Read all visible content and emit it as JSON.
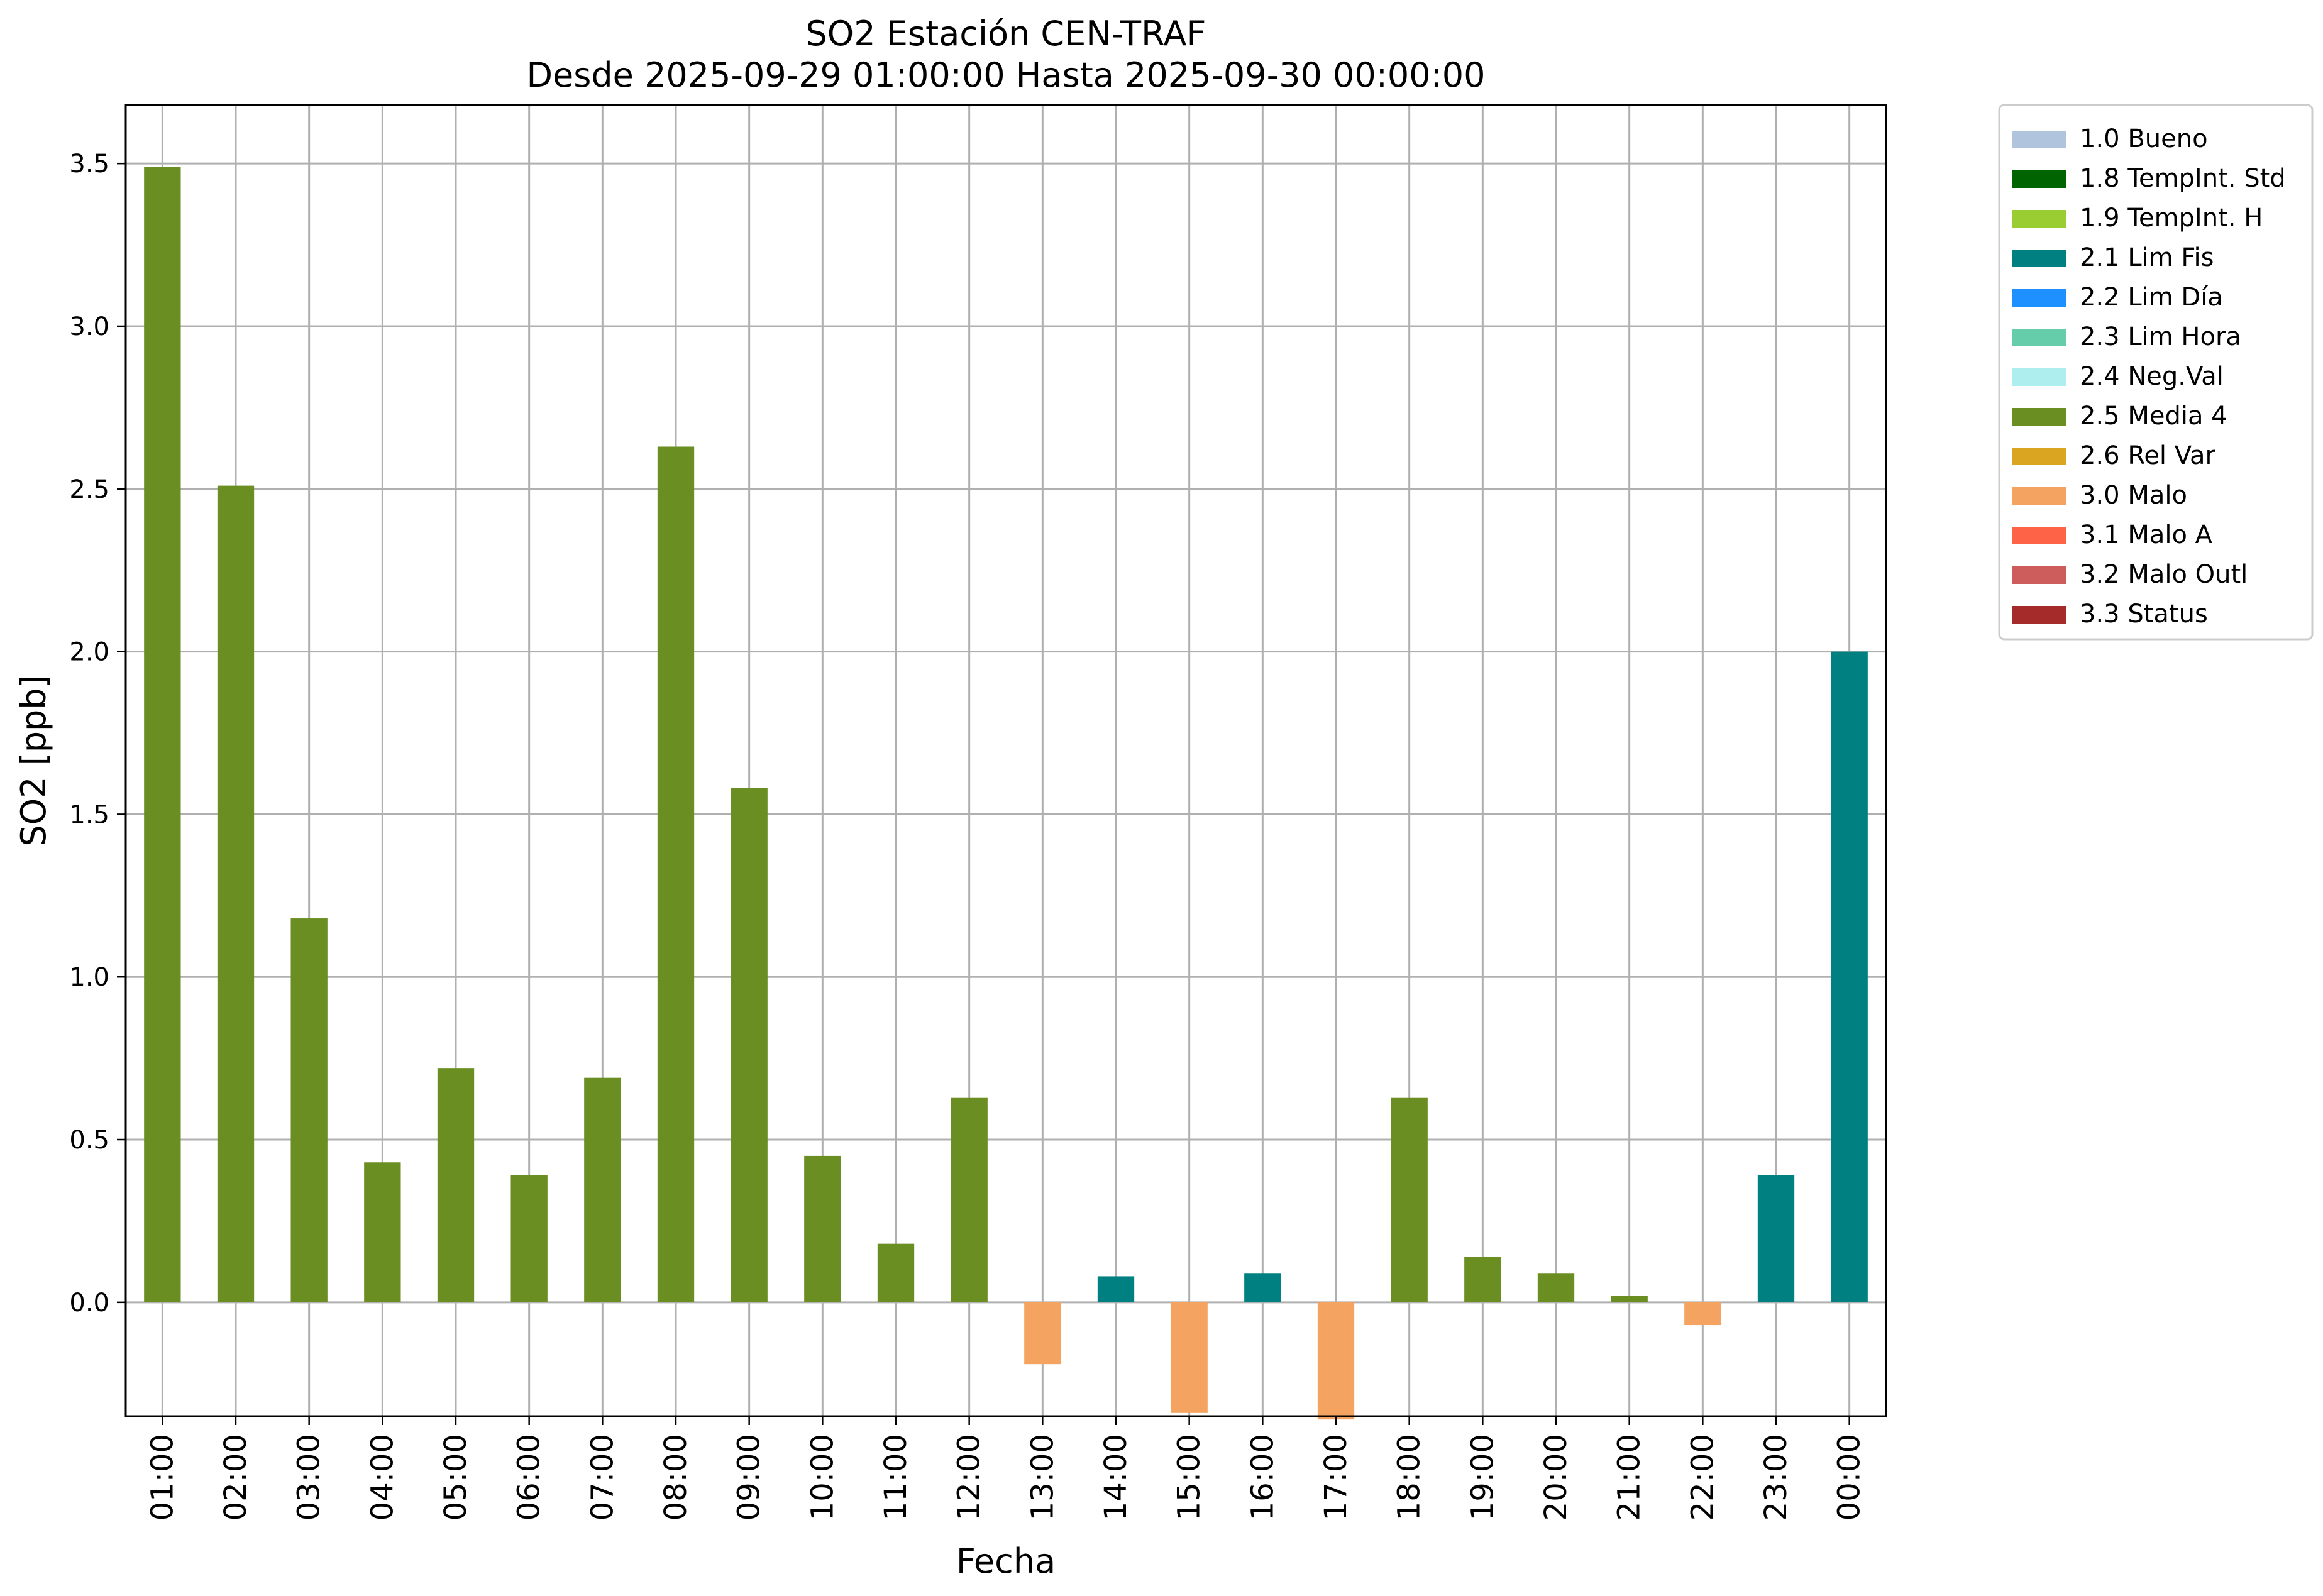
{
  "chart_data": {
    "type": "bar",
    "title": "SO2 Estación CEN-TRAF",
    "subtitle": "Desde 2025-09-29 01:00:00 Hasta 2025-09-30 00:00:00",
    "xlabel": "Fecha",
    "ylabel": "SO2 [ppb]",
    "ylim": [
      -0.35,
      3.68
    ],
    "yticks": [
      "0.0",
      "0.5",
      "1.0",
      "1.5",
      "2.0",
      "2.5",
      "3.0",
      "3.5"
    ],
    "ytick_values": [
      0.0,
      0.5,
      1.0,
      1.5,
      2.0,
      2.5,
      3.0,
      3.5
    ],
    "grid": true,
    "legend_position": "outside-top-right",
    "categories": [
      "01:00",
      "02:00",
      "03:00",
      "04:00",
      "05:00",
      "06:00",
      "07:00",
      "08:00",
      "09:00",
      "10:00",
      "11:00",
      "12:00",
      "13:00",
      "14:00",
      "15:00",
      "16:00",
      "17:00",
      "18:00",
      "19:00",
      "20:00",
      "21:00",
      "22:00",
      "23:00",
      "00:00"
    ],
    "values": [
      3.49,
      2.51,
      1.18,
      0.43,
      0.72,
      0.39,
      0.69,
      2.63,
      1.58,
      0.45,
      0.18,
      0.63,
      -0.19,
      0.08,
      -0.34,
      0.09,
      -0.36,
      0.63,
      0.14,
      0.09,
      0.02,
      -0.07,
      0.39,
      2.0
    ],
    "flags": [
      "2.5 Media 4",
      "2.5 Media 4",
      "2.5 Media 4",
      "2.5 Media 4",
      "2.5 Media 4",
      "2.5 Media 4",
      "2.5 Media 4",
      "2.5 Media 4",
      "2.5 Media 4",
      "2.5 Media 4",
      "2.5 Media 4",
      "2.5 Media 4",
      "3.0 Malo",
      "2.1 Lim Fis",
      "3.0 Malo",
      "2.1 Lim Fis",
      "3.0 Malo",
      "2.5 Media 4",
      "2.5 Media 4",
      "2.5 Media 4",
      "2.5 Media 4",
      "3.0 Malo",
      "2.1 Lim Fis",
      "2.1 Lim Fis"
    ],
    "legend": [
      {
        "label": "1.0 Bueno",
        "color": "#b0c4de"
      },
      {
        "label": "1.8 TempInt. Std",
        "color": "#006400"
      },
      {
        "label": "1.9 TempInt. H",
        "color": "#9acd32"
      },
      {
        "label": "2.1 Lim Fis",
        "color": "#008080"
      },
      {
        "label": "2.2 Lim Día",
        "color": "#1e90ff"
      },
      {
        "label": "2.3 Lim Hora",
        "color": "#66cdaa"
      },
      {
        "label": "2.4 Neg.Val",
        "color": "#afeeee"
      },
      {
        "label": "2.5 Media 4",
        "color": "#6b8e23"
      },
      {
        "label": "2.6 Rel Var",
        "color": "#daa520"
      },
      {
        "label": "3.0 Malo",
        "color": "#f4a460"
      },
      {
        "label": "3.1 Malo A",
        "color": "#ff6347"
      },
      {
        "label": "3.2 Malo Outl",
        "color": "#cd5c5c"
      },
      {
        "label": "3.3 Status",
        "color": "#a52a2a"
      }
    ]
  }
}
